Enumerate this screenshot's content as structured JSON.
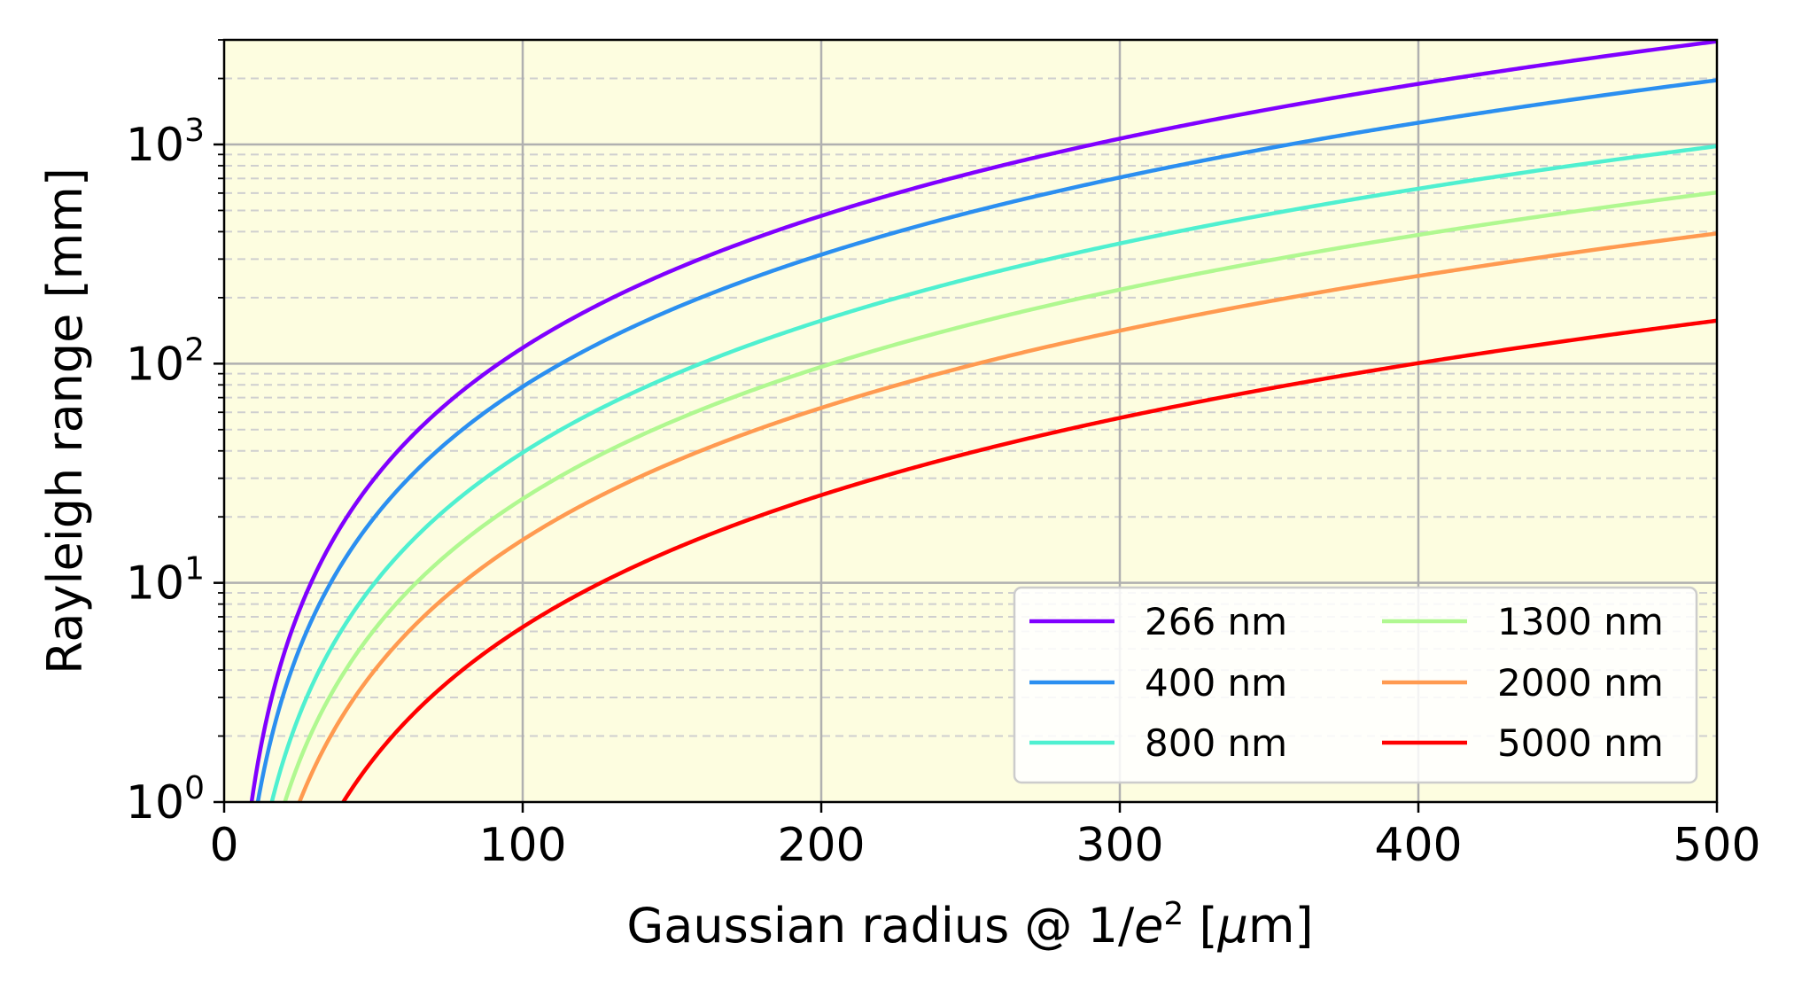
{
  "chart_data": {
    "type": "line",
    "title": "",
    "xlabel_main": "Gaussian radius @ 1/",
    "xlabel_e": "e",
    "xlabel_sup": "2",
    "xlabel_open": " [",
    "xlabel_mu": "μ",
    "xlabel_unit": "m]",
    "ylabel": "Rayleigh range [mm]",
    "xlim": [
      0,
      500
    ],
    "ylim": [
      1,
      3000
    ],
    "yscale": "log",
    "xticks": [
      0,
      100,
      200,
      300,
      400,
      500
    ],
    "yticks": [
      {
        "base": "10",
        "exp": "0",
        "value": 1
      },
      {
        "base": "10",
        "exp": "1",
        "value": 10
      },
      {
        "base": "10",
        "exp": "2",
        "value": 100
      },
      {
        "base": "10",
        "exp": "3",
        "value": 1000
      }
    ],
    "grid": {
      "major": true,
      "minor_y": true
    },
    "plot_background": "#fdfde0",
    "legend": {
      "position": "lower-right",
      "columns": 2
    },
    "series": [
      {
        "name": "266 nm",
        "wavelength_nm": 266,
        "color": "#8000ff"
      },
      {
        "name": "400 nm",
        "wavelength_nm": 400,
        "color": "#2b8ff0"
      },
      {
        "name": "800 nm",
        "wavelength_nm": 800,
        "color": "#4ff0d0"
      },
      {
        "name": "1300 nm",
        "wavelength_nm": 1300,
        "color": "#b0f890"
      },
      {
        "name": "2000 nm",
        "wavelength_nm": 2000,
        "color": "#ff9a50"
      },
      {
        "name": "5000 nm",
        "wavelength_nm": 5000,
        "color": "#ff0000"
      }
    ]
  }
}
